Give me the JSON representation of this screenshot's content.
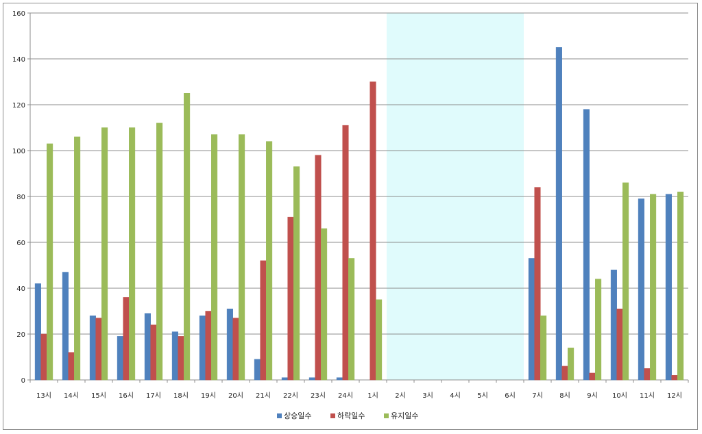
{
  "chart_data": {
    "type": "bar",
    "categories": [
      "13시",
      "14시",
      "15시",
      "16시",
      "17시",
      "18시",
      "19시",
      "20시",
      "21시",
      "22시",
      "23시",
      "24시",
      "1시",
      "2시",
      "3시",
      "4시",
      "5시",
      "6시",
      "7시",
      "8시",
      "9시",
      "10시",
      "11시",
      "12시"
    ],
    "series": [
      {
        "name": "상승일수",
        "color": "#4f81bd",
        "values": [
          42,
          47,
          28,
          19,
          29,
          21,
          28,
          31,
          9,
          1,
          1,
          1,
          0,
          null,
          null,
          null,
          null,
          null,
          53,
          145,
          118,
          48,
          79,
          81
        ]
      },
      {
        "name": "하락일수",
        "color": "#c0504d",
        "values": [
          20,
          12,
          27,
          36,
          24,
          19,
          30,
          27,
          52,
          71,
          98,
          111,
          130,
          null,
          null,
          null,
          null,
          null,
          84,
          6,
          3,
          31,
          5,
          2
        ]
      },
      {
        "name": "유지일수",
        "color": "#9bbb59",
        "values": [
          103,
          106,
          110,
          110,
          112,
          125,
          107,
          107,
          104,
          93,
          66,
          53,
          35,
          null,
          null,
          null,
          null,
          null,
          28,
          14,
          44,
          86,
          81,
          82
        ]
      }
    ],
    "ylim": [
      0,
      160
    ],
    "yticks": [
      0,
      20,
      40,
      60,
      80,
      100,
      120,
      140,
      160
    ],
    "grid": true,
    "legend_position": "bottom",
    "highlight": {
      "from": "2시",
      "to": "6시",
      "color": "#e0fbfc"
    }
  }
}
